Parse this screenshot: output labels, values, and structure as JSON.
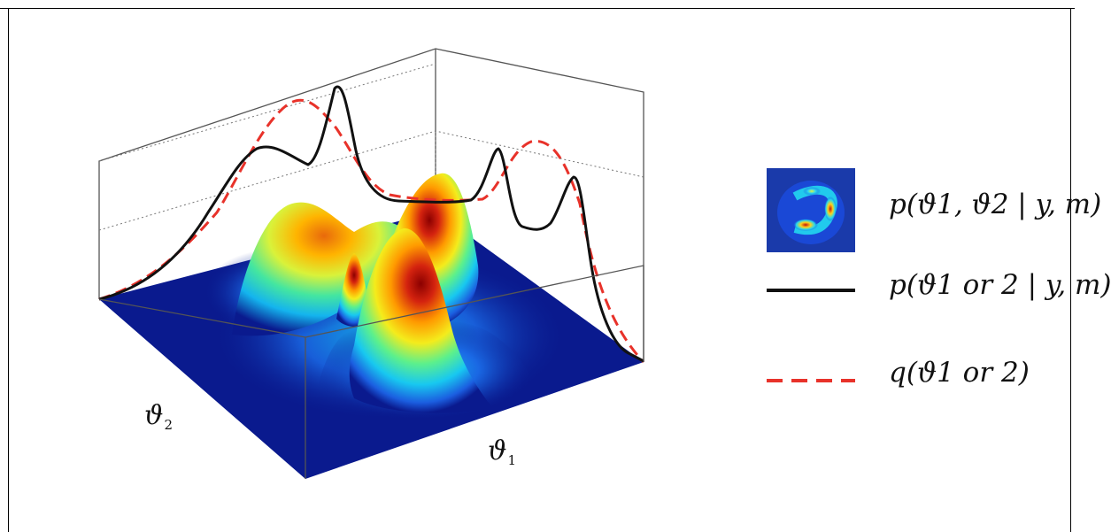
{
  "axes": {
    "x_label": "ϑ",
    "x_label_subscript": "1",
    "y_label": "ϑ",
    "y_label_subscript": "2"
  },
  "legend": {
    "joint_label": "p(ϑ1, ϑ2 | y, m)",
    "true_marginal_label": "p(ϑ1 or 2 | y, m)",
    "approx_marginal_label": "q(ϑ1 or 2)"
  },
  "colors": {
    "floor": "#0a1a8e",
    "true_marginal": "#111111",
    "approx_marginal": "#e8322a",
    "box_edges": "#555555"
  },
  "icons": {
    "joint_thumbnail": "jet-colormap-density-thumbnail"
  }
}
